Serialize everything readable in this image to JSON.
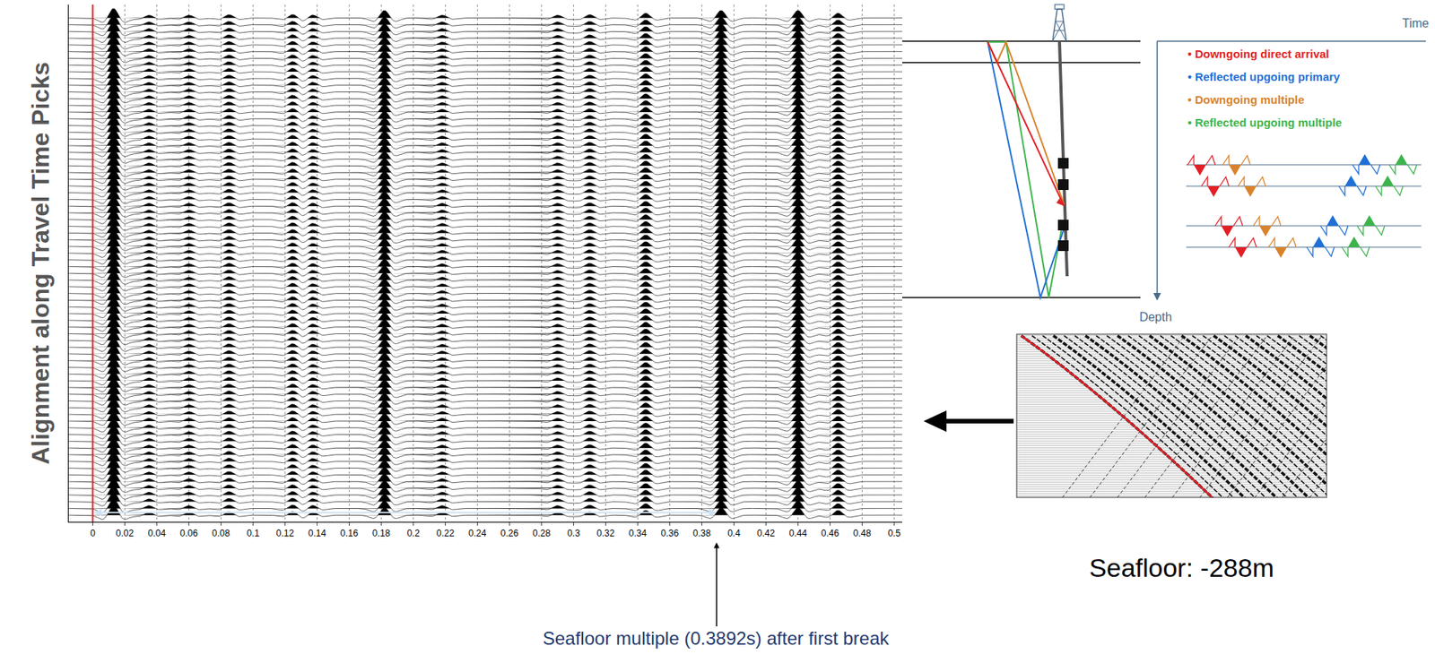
{
  "chart_data": {
    "type": "wiggle",
    "ylabel": "Alignment along Travel Time Picks",
    "color": "#000000",
    "trace_count": 75,
    "xlim": [
      -0.015,
      0.505
    ],
    "xticks": [
      0,
      0.02,
      0.04,
      0.06,
      0.08,
      0.1,
      0.12,
      0.14,
      0.16,
      0.18,
      0.2,
      0.22,
      0.24,
      0.26,
      0.28,
      0.3,
      0.32,
      0.34,
      0.36,
      0.38,
      0.4,
      0.42,
      0.44,
      0.46,
      0.48,
      0.5
    ],
    "ylim": [
      -1,
      76
    ],
    "tick_labels": "x",
    "grid": true,
    "first_break": 0,
    "events": [
      {
        "time": 0.013,
        "amplitude": 1.0
      },
      {
        "time": 0.035,
        "amplitude": 0.3
      },
      {
        "time": 0.06,
        "amplitude": 0.3
      },
      {
        "time": 0.085,
        "amplitude": 0.35
      },
      {
        "time": 0.125,
        "amplitude": 0.4
      },
      {
        "time": 0.137,
        "amplitude": 0.35
      },
      {
        "time": 0.182,
        "amplitude": 0.8
      },
      {
        "time": 0.218,
        "amplitude": 0.3
      },
      {
        "time": 0.29,
        "amplitude": 0.3
      },
      {
        "time": 0.31,
        "amplitude": 0.35
      },
      {
        "time": 0.345,
        "amplitude": 0.5
      },
      {
        "time": 0.392,
        "amplitude": 0.8
      },
      {
        "time": 0.44,
        "amplitude": 0.8
      },
      {
        "time": 0.465,
        "amplitude": 0.5
      }
    ],
    "annotation": {
      "text": "Seafloor multiple (0.3892s) after first break",
      "x": 0.3892
    }
  },
  "diagram": {
    "time_label": "Time",
    "depth_label": "Depth",
    "legend": [
      {
        "label": "• Downgoing direct arrival",
        "color": "#e31e24"
      },
      {
        "label": "• Reflected upgoing primary",
        "color": "#1f6fd6"
      },
      {
        "label": "• Downgoing multiple",
        "color": "#d9822b"
      },
      {
        "label": "• Reflected upgoing multiple",
        "color": "#3cb44b"
      }
    ],
    "seafloor_label": "Seafloor: -288m"
  }
}
